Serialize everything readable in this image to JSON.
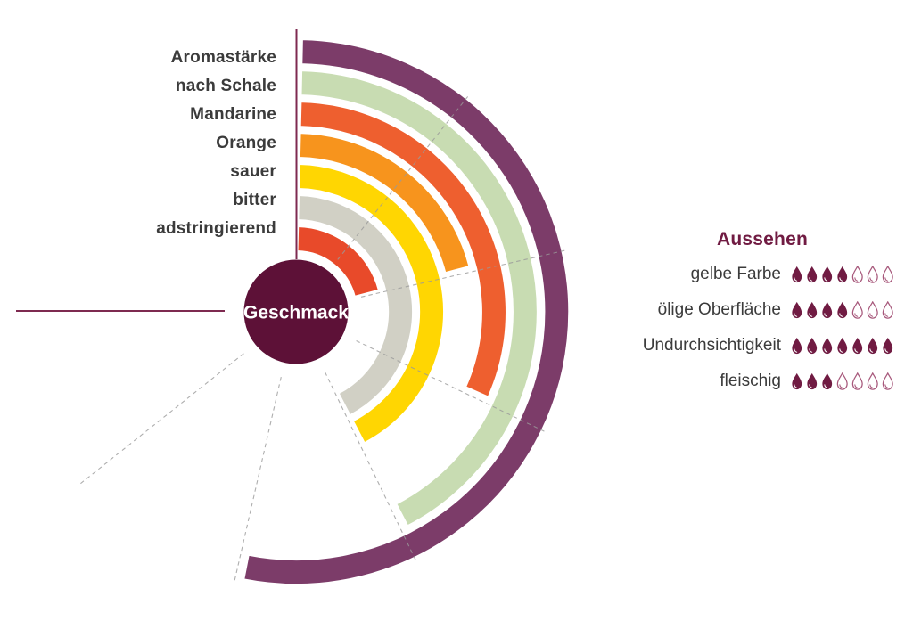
{
  "chart_data": {
    "type": "radial-bar",
    "center_label": "Geschmack",
    "max_value": 7,
    "unit_angle_deg": 38.5714,
    "start_angle_deg": 0,
    "direction": "clockwise",
    "rings_outer_to_inner": [
      {
        "id": "aromastaerke",
        "label": "Aromastärke",
        "value": 5,
        "color": "#7c3c69"
      },
      {
        "id": "nach-schale",
        "label": "nach Schale",
        "value": 4,
        "color": "#c8dcb2"
      },
      {
        "id": "mandarine",
        "label": "Mandarine",
        "value": 3,
        "color": "#ee5f2f"
      },
      {
        "id": "orange",
        "label": "Orange",
        "value": 2,
        "color": "#f7941d"
      },
      {
        "id": "sauer",
        "label": "sauer",
        "value": 4,
        "color": "#ffd602"
      },
      {
        "id": "bitter",
        "label": "bitter",
        "value": 4,
        "color": "#d1d0c5"
      },
      {
        "id": "adstringierend",
        "label": "adstringierend",
        "value": 2,
        "color": "#e84a2a"
      }
    ],
    "grid": {
      "spokes_at_values": [
        1,
        2,
        3,
        4,
        5,
        6
      ],
      "style": "dashed"
    },
    "axis_lines": {
      "start": "solid vertical line at top (value 0)",
      "end": "solid horizontal line at left (value 7)"
    }
  },
  "legend": {
    "title": "Aussehen",
    "icon": "droplet-icon",
    "max": 7,
    "items": [
      {
        "label": "gelbe Farbe",
        "value": 4
      },
      {
        "label": "ölige Oberfläche",
        "value": 4
      },
      {
        "label": "Undurchsichtigkeit",
        "value": 7
      },
      {
        "label": "fleischig",
        "value": 3
      }
    ]
  },
  "colors": {
    "center_circle": "#5d1137",
    "axis_line": "#7e2a50",
    "grid_dash": "#9a9a9a",
    "droplet_filled": "#701b42",
    "droplet_empty_outline": "#a7587b",
    "label_text": "#3b3b3b",
    "legend_heading": "#701b42"
  }
}
